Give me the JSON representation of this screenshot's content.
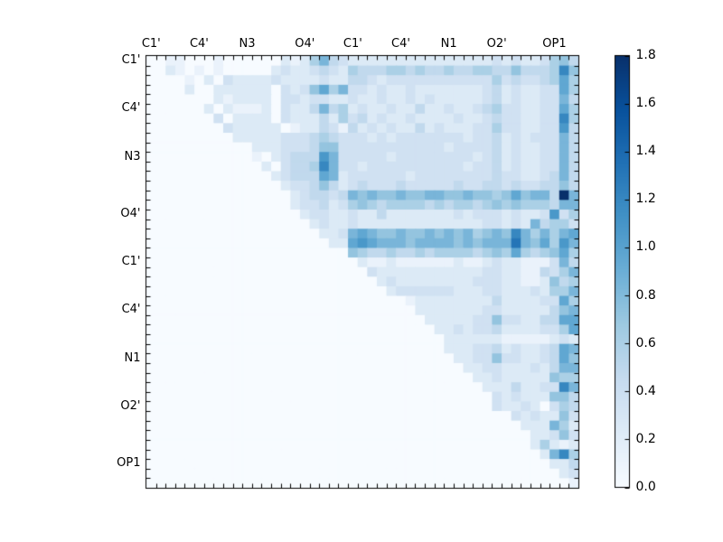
{
  "figure": {
    "background": "#ffffff",
    "text_color": "#000000",
    "colormap": "Blues",
    "colormap_hex_anchors": [
      "#f7fbff",
      "#deebf7",
      "#c6dbef",
      "#9ecae1",
      "#6baed6",
      "#4292c6",
      "#2171b5",
      "#08519c",
      "#08306b"
    ]
  },
  "chart_data": {
    "type": "heatmap",
    "description": "Upper-triangular pairwise atom-distance fluctuation matrix; lower triangle is empty (value 0).",
    "matrix_size": 45,
    "x_tick_labels": [
      "C1'",
      "C4'",
      "N3",
      "O4'",
      "C1'",
      "C4'",
      "N1",
      "O2'",
      "OP1"
    ],
    "x_tick_positions": [
      0,
      5,
      10,
      16,
      21,
      26,
      31,
      36,
      42
    ],
    "y_tick_labels": [
      "C1'",
      "C4'",
      "N3",
      "O4'",
      "C1'",
      "C4'",
      "N1",
      "O2'",
      "OP1"
    ],
    "y_tick_positions": [
      0,
      5,
      10,
      16,
      21,
      26,
      31,
      36,
      42
    ],
    "x_range": [
      0,
      45
    ],
    "y_range": [
      0,
      45
    ],
    "grid": false,
    "colorbar": {
      "min": 0.0,
      "max": 1.8,
      "tick_values": [
        0.0,
        0.2,
        0.4,
        0.6,
        0.8,
        1.0,
        1.2,
        1.4,
        1.6,
        1.8
      ],
      "tick_labels": [
        "0.0",
        "0.2",
        "0.4",
        "0.6",
        "0.8",
        "1.0",
        "1.2",
        "1.4",
        "1.6",
        "1.8"
      ],
      "position": "right"
    },
    "value_encoding": "Each character of matrix_rows is a base-16 digit d (0-f); cell value = d * 0.12 in the same units as the colorbar (0.0 - 1.8). Row 0 is the top row.",
    "value_scale": 0.12,
    "matrix_rows": [
      "001100010000002125743222222222222222323223564",
      "0021010100000232234325444554544544554464445a6",
      "000010203222232222322443233333333333534334585",
      "000020022222203236857332322322222223423223385",
      "000000021222203323322322322323222223423223374",
      "000000202111203224745232232242232234533223385",
      "0000000302222032224253423223222232234332233a5",
      "000000003222220122431423232242322233533223394",
      "000000000222223334543332323333333233423233374",
      "000000000002223334663333333333323333423223374",
      "000000000001023444973333323333333323423223374",
      "000000000000203445a73323333333333233423223374",
      "000000000000023444872333333233333333433223474",
      "000000000000002334642343334333334334434334464",
      "000000000000000234434767667667766766568677 4f7",
      "000000000000000233423565455554545545656555477",
      "000000000000000023322322422222223233323223935",
      "000000000000000002322322222222222223323274553",
      "00000000000000000022378766766767675676a757578",
      "00000000000000000002289877767777676777b768597",
      "000000000000000000000654454454555545658545685",
      "000000000000000000000021121111112112322111374",
      "000000000000000000000003222222222223322114357",
      "000000000000000000000000232222222233322112645",
      "000000000000000000000000023333332223322232557",
      "000000000000000000000000000122222222422223385",
      "000000000000000000000000000022222223322222467",
      "000000000000000000000000000002222233633224488",
      "000000000000000000000000000000223233422223358",
      "000000000000000000000000000000022222211111232",
      "000000000000000000000000000000022233423223487",
      "000000000000000000000000000000002233633223486",
      "000000000000000000000000000000000223322232477",
      "000000000000000000000000000000000022322222655",
      "00000000000000000000000000000000000222422 33a7",
      "000000000000000000000000000000000000323222664",
      "000000000000000000000000000000000000322320354",
      "000000000000000000000000000000000000003232263",
      "000000000000000000000000000000000000000222752",
      "000000000000000000000000000000000000000022363",
      "000000000000000000000000000000000000000025212",
      "00000000000000000000000000000000000000000 27a5",
      "000000000000000000000000000000000000000000224",
      "000000000000000000000000000000000000000000023",
      "000000000000000000000000000000000000000000001"
    ]
  }
}
